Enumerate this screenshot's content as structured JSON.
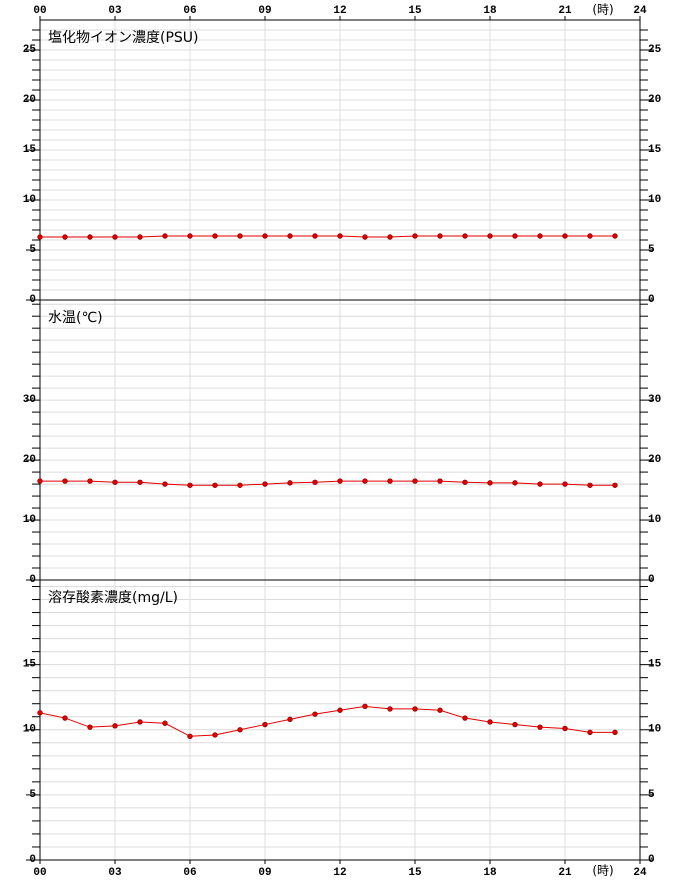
{
  "chart_data": [
    {
      "type": "line",
      "title": "塩化物イオン濃度(PSU)",
      "x_label": "(時)",
      "x": [
        0,
        1,
        2,
        3,
        4,
        5,
        6,
        7,
        8,
        9,
        10,
        11,
        12,
        13,
        14,
        15,
        16,
        17,
        18,
        19,
        20,
        21,
        22,
        23
      ],
      "values": [
        6.3,
        6.3,
        6.3,
        6.3,
        6.3,
        6.4,
        6.4,
        6.4,
        6.4,
        6.4,
        6.4,
        6.4,
        6.4,
        6.3,
        6.3,
        6.4,
        6.4,
        6.4,
        6.4,
        6.4,
        6.4,
        6.4,
        6.4,
        6.4
      ],
      "color": "#e00000",
      "xlim": [
        0,
        24
      ],
      "xticks": [
        {
          "value": 0,
          "label": "00"
        },
        {
          "value": 3,
          "label": "03"
        },
        {
          "value": 6,
          "label": "06"
        },
        {
          "value": 9,
          "label": "09"
        },
        12,
        15,
        18,
        21,
        24
      ],
      "ylim": [
        0,
        28
      ],
      "yticks": [
        0,
        5,
        10,
        15,
        20,
        25
      ],
      "minor_yticks": [
        1,
        2,
        3,
        4,
        6,
        7,
        8,
        9,
        11,
        12,
        13,
        14,
        16,
        17,
        18,
        19,
        21,
        22,
        23,
        24,
        26,
        27
      ],
      "grid": true
    },
    {
      "type": "line",
      "title": "水温(℃)",
      "x": [
        0,
        1,
        2,
        3,
        4,
        5,
        6,
        7,
        8,
        9,
        10,
        11,
        12,
        13,
        14,
        15,
        16,
        17,
        18,
        19,
        20,
        21,
        22,
        23
      ],
      "values": [
        16.5,
        16.5,
        16.5,
        16.3,
        16.3,
        16.0,
        15.8,
        15.8,
        15.8,
        16.0,
        16.2,
        16.3,
        16.5,
        16.5,
        16.5,
        16.5,
        16.5,
        16.3,
        16.2,
        16.2,
        16.0,
        16.0,
        15.8,
        15.8
      ],
      "color": "#e00000",
      "xlim": [
        0,
        24
      ],
      "xticks": [
        {
          "value": 0,
          "label": "00"
        },
        {
          "value": 3,
          "label": "03"
        },
        {
          "value": 6,
          "label": "06"
        },
        {
          "value": 9,
          "label": "09"
        },
        12,
        15,
        18,
        21,
        24
      ],
      "ylim": [
        0,
        46.7
      ],
      "yticks": [
        0,
        10,
        20,
        30
      ],
      "minor_yticks": [
        2,
        4,
        6,
        8,
        12,
        14,
        16,
        18,
        22,
        24,
        26,
        28,
        32,
        34,
        36,
        38,
        40,
        42,
        44,
        46
      ],
      "grid": true
    },
    {
      "type": "line",
      "title": "溶存酸素濃度(mg/L)",
      "x_label": "(時)",
      "x": [
        0,
        1,
        2,
        3,
        4,
        5,
        6,
        7,
        8,
        9,
        10,
        11,
        12,
        13,
        14,
        15,
        16,
        17,
        18,
        19,
        20,
        21,
        22,
        23
      ],
      "values": [
        11.3,
        10.9,
        10.2,
        10.3,
        10.6,
        10.5,
        9.5,
        9.6,
        10.0,
        10.4,
        10.8,
        11.2,
        11.5,
        11.8,
        11.6,
        11.6,
        11.5,
        10.9,
        10.6,
        10.4,
        10.2,
        10.1,
        9.8,
        9.8
      ],
      "color": "#e00000",
      "xlim": [
        0,
        24
      ],
      "xticks": [
        {
          "value": 0,
          "label": "00"
        },
        {
          "value": 3,
          "label": "03"
        },
        {
          "value": 6,
          "label": "06"
        },
        {
          "value": 9,
          "label": "09"
        },
        12,
        15,
        18,
        21,
        24
      ],
      "ylim": [
        0,
        21.5
      ],
      "yticks": [
        0,
        5,
        10,
        15
      ],
      "minor_yticks": [
        1,
        2,
        3,
        4,
        6,
        7,
        8,
        9,
        11,
        12,
        13,
        14,
        16,
        17,
        18,
        19,
        20,
        21
      ],
      "grid": true
    }
  ]
}
